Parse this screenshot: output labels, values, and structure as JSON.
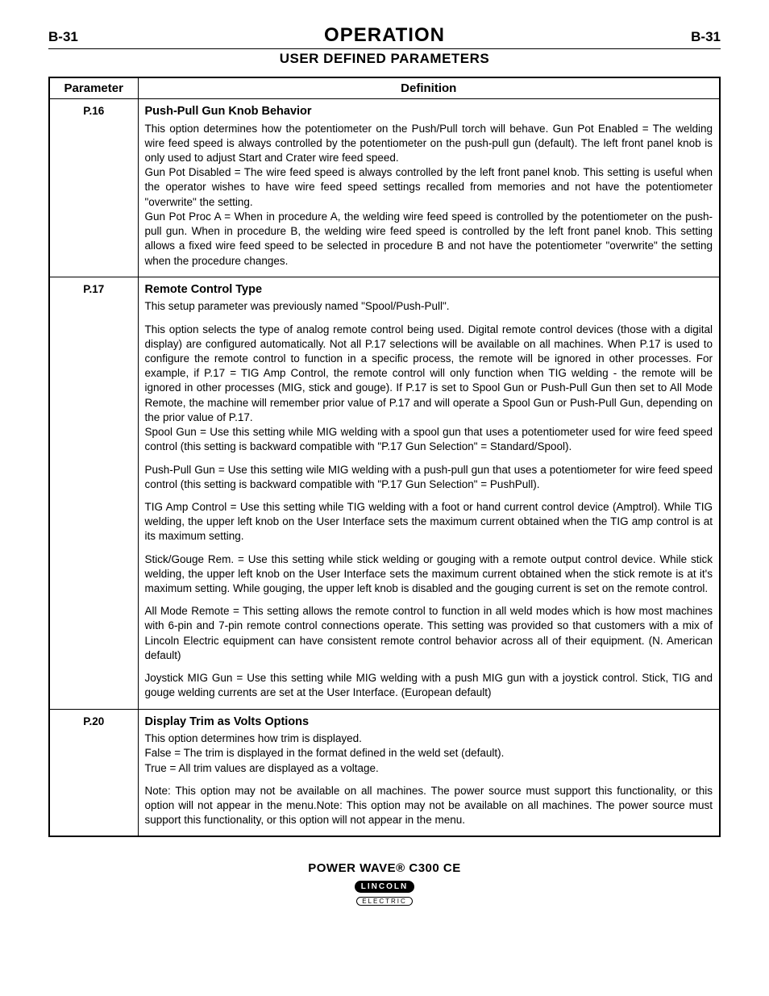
{
  "header": {
    "page_left": "B-31",
    "title": "OPERATION",
    "page_right": "B-31",
    "subtitle": "USER DEFINED PARAMETERS"
  },
  "table": {
    "col_param": "Parameter",
    "col_def": "Definition",
    "rows": [
      {
        "id": "P.16",
        "title": "Push-Pull Gun Knob Behavior",
        "paras": [
          "This option determines how the potentiometer on the Push/Pull torch will behave. Gun Pot Enabled = The welding wire feed speed is always controlled by the potentiometer on the push-pull gun (default). The left front panel knob is only used to adjust Start and Crater wire feed speed.",
          "Gun Pot Disabled = The wire feed speed is always controlled by the left front panel knob. This setting is useful when the operator wishes to have wire feed speed settings recalled from memories and not have the potentiometer \"overwrite\" the setting.",
          "Gun Pot Proc A = When in procedure A, the welding wire feed speed is controlled by the potentiometer on the push-pull gun. When in procedure B, the welding wire feed speed is controlled by the left front panel knob. This setting allows a fixed wire feed speed to be selected in procedure B and not have the potentiometer \"overwrite\" the setting when the procedure changes."
        ]
      },
      {
        "id": "P.17",
        "title": "Remote Control Type",
        "paras": [
          "This setup parameter was previously named \"Spool/Push-Pull\".",
          "This option selects the type of analog remote control being used. Digital remote control devices (those with a digital display) are configured automatically. Not all P.17 selections will be available on all machines. When P.17 is used to configure the remote control to function in a specific process, the remote will be ignored in other processes. For example, if P.17 = TIG Amp Control, the remote control will only function when TIG welding - the remote will be ignored in other processes (MIG, stick and gouge). If P.17 is set to Spool Gun or Push-Pull Gun then set to All Mode Remote, the machine will remember prior value of P.17 and will operate a Spool Gun or Push-Pull Gun, depending on the prior value of P.17.",
          "Spool Gun = Use this setting while MIG welding with a spool gun that uses a potentiometer used for wire feed speed control (this setting is backward compatible with \"P.17 Gun Selection\" = Standard/Spool).",
          "Push-Pull Gun = Use this setting wile MIG welding with a push-pull gun that uses a potentiometer for wire feed speed control (this setting is backward compatible with \"P.17 Gun Selection\" = PushPull).",
          "TIG Amp Control = Use this setting while TIG welding with a foot or hand current control device (Amptrol).  While TIG welding, the upper left knob on the User Interface sets the maximum current obtained when the TIG amp control is at its maximum setting.",
          "Stick/Gouge Rem. = Use this setting while stick welding or gouging with a remote output control device. While stick welding, the upper left knob on the User Interface sets the maximum current obtained when the stick remote is at it's maximum setting.  While gouging, the upper left knob is disabled and the gouging current is set on the remote control.",
          "All Mode Remote = This setting allows the remote control to function in all weld modes which is how most machines with 6-pin and 7-pin remote control connections operate.  This setting was provided so that customers with a mix of Lincoln Electric equipment can have consistent remote control behavior across all of their equipment. (N. American default)",
          "Joystick MIG Gun = Use this setting while MIG welding with a push MIG gun with a joystick control.  Stick, TIG and gouge welding currents are set at the User Interface. (European default)"
        ]
      },
      {
        "id": "P.20",
        "title": "Display Trim as Volts Options",
        "paras": [
          "This option determines how trim is displayed.",
          "False = The trim is displayed in the format defined in the weld set (default).",
          "True = All trim values are displayed as a voltage.",
          "Note: This option may not be available on all machines. The power source must support this functionality, or this option will not appear in the menu.Note: This option may not be available on all machines. The power source must support this functionality, or this option will not appear in the menu."
        ]
      }
    ]
  },
  "footer": {
    "product": "POWER WAVE® C300 CE",
    "brand_top": "LINCOLN",
    "brand_bottom": "ELECTRIC"
  }
}
